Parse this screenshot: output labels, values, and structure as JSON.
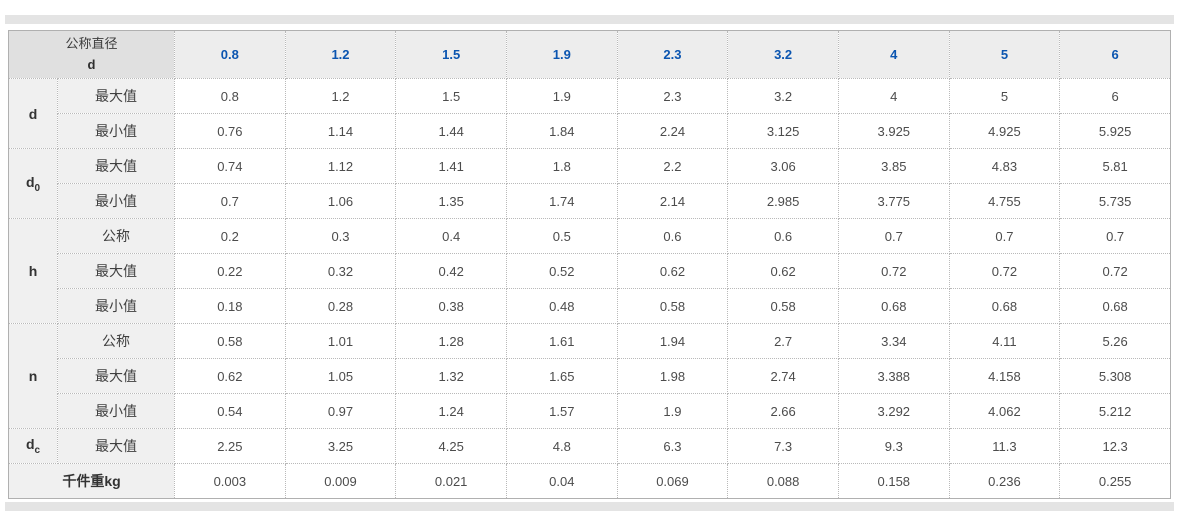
{
  "colors": {
    "header_blue": "#0b55b0",
    "bar_gray": "#e4e4e4",
    "corner_bg": "#e0e0e0",
    "header_bg": "#ededed",
    "label_bg": "#f0f0f0",
    "border_gray": "#b0b0b0"
  },
  "table": {
    "corner": {
      "line1": "公称直径",
      "line2": "d"
    },
    "columns": [
      "0.8",
      "1.2",
      "1.5",
      "1.9",
      "2.3",
      "3.2",
      "4",
      "5",
      "6"
    ],
    "groups": [
      {
        "key": "d",
        "sub": "",
        "rows": [
          {
            "label": "最大值",
            "values": [
              "0.8",
              "1.2",
              "1.5",
              "1.9",
              "2.3",
              "3.2",
              "4",
              "5",
              "6"
            ]
          },
          {
            "label": "最小值",
            "values": [
              "0.76",
              "1.14",
              "1.44",
              "1.84",
              "2.24",
              "3.125",
              "3.925",
              "4.925",
              "5.925"
            ]
          }
        ]
      },
      {
        "key": "d",
        "sub": "0",
        "rows": [
          {
            "label": "最大值",
            "values": [
              "0.74",
              "1.12",
              "1.41",
              "1.8",
              "2.2",
              "3.06",
              "3.85",
              "4.83",
              "5.81"
            ]
          },
          {
            "label": "最小值",
            "values": [
              "0.7",
              "1.06",
              "1.35",
              "1.74",
              "2.14",
              "2.985",
              "3.775",
              "4.755",
              "5.735"
            ]
          }
        ]
      },
      {
        "key": "h",
        "sub": "",
        "rows": [
          {
            "label": "公称",
            "values": [
              "0.2",
              "0.3",
              "0.4",
              "0.5",
              "0.6",
              "0.6",
              "0.7",
              "0.7",
              "0.7"
            ]
          },
          {
            "label": "最大值",
            "values": [
              "0.22",
              "0.32",
              "0.42",
              "0.52",
              "0.62",
              "0.62",
              "0.72",
              "0.72",
              "0.72"
            ]
          },
          {
            "label": "最小值",
            "values": [
              "0.18",
              "0.28",
              "0.38",
              "0.48",
              "0.58",
              "0.58",
              "0.68",
              "0.68",
              "0.68"
            ]
          }
        ]
      },
      {
        "key": "n",
        "sub": "",
        "rows": [
          {
            "label": "公称",
            "values": [
              "0.58",
              "1.01",
              "1.28",
              "1.61",
              "1.94",
              "2.7",
              "3.34",
              "4.11",
              "5.26"
            ]
          },
          {
            "label": "最大值",
            "values": [
              "0.62",
              "1.05",
              "1.32",
              "1.65",
              "1.98",
              "2.74",
              "3.388",
              "4.158",
              "5.308"
            ]
          },
          {
            "label": "最小值",
            "values": [
              "0.54",
              "0.97",
              "1.24",
              "1.57",
              "1.9",
              "2.66",
              "3.292",
              "4.062",
              "5.212"
            ]
          }
        ]
      },
      {
        "key": "d",
        "sub": "c",
        "rows": [
          {
            "label": "最大值",
            "values": [
              "2.25",
              "3.25",
              "4.25",
              "4.8",
              "6.3",
              "7.3",
              "9.3",
              "11.3",
              "12.3"
            ]
          }
        ]
      }
    ],
    "footer": {
      "label": "千件重kg",
      "values": [
        "0.003",
        "0.009",
        "0.021",
        "0.04",
        "0.069",
        "0.088",
        "0.158",
        "0.236",
        "0.255"
      ]
    }
  }
}
